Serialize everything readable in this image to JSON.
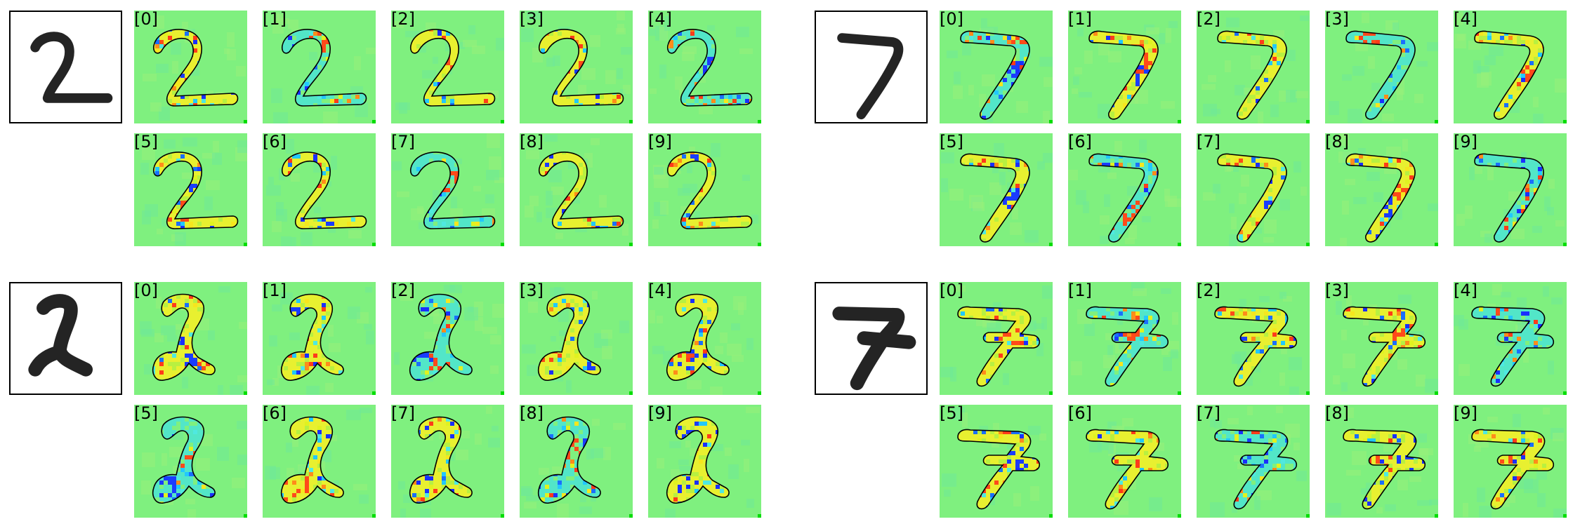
{
  "figure": {
    "labels": [
      "[0]",
      "[1]",
      "[2]",
      "[3]",
      "[4]",
      "[5]",
      "[6]",
      "[7]",
      "[8]",
      "[9]"
    ],
    "colors": {
      "background": "#7ff07f",
      "outline": "#000000",
      "hot": [
        "#ff3b1a",
        "#ff8c1a",
        "#f6e61e",
        "#e0f220"
      ],
      "cold": [
        "#1a2fff",
        "#1a6fff",
        "#22c8ff",
        "#4fe9e0"
      ],
      "corner_marker": "#00dd00"
    },
    "groups": [
      {
        "name": "group-digit-2-a",
        "digit": "2",
        "style": "thin"
      },
      {
        "name": "group-digit-7-a",
        "digit": "7",
        "style": "thin"
      },
      {
        "name": "group-digit-2-b",
        "digit": "2",
        "style": "looped"
      },
      {
        "name": "group-digit-7-b",
        "digit": "7",
        "style": "barred"
      }
    ]
  }
}
